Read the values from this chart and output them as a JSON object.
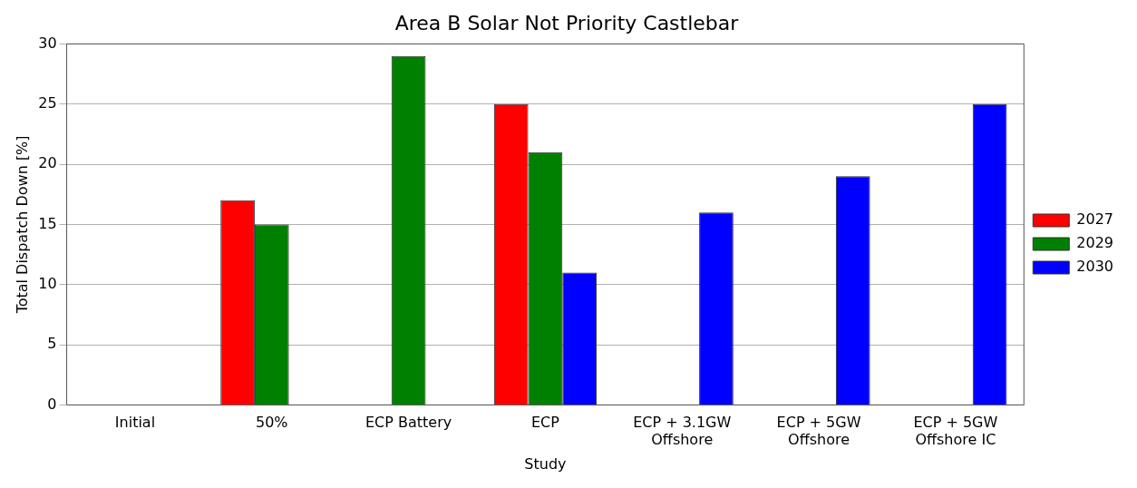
{
  "chart_data": {
    "type": "bar",
    "title": "Area B Solar Not Priority Castlebar",
    "xlabel": "Study",
    "ylabel": "Total Dispatch Down [%]",
    "categories": [
      "Initial",
      "50%",
      "ECP Battery",
      "ECP",
      "ECP + 3.1GW\nOffshore",
      "ECP + 5GW\nOffshore",
      "ECP + 5GW\nOffshore IC"
    ],
    "series": [
      {
        "name": "2027",
        "color": "#ff0000",
        "values": [
          0,
          17,
          0,
          25,
          0,
          0,
          0
        ]
      },
      {
        "name": "2029",
        "color": "#008000",
        "values": [
          0,
          15,
          29,
          21,
          0,
          0,
          0
        ]
      },
      {
        "name": "2030",
        "color": "#0000ff",
        "values": [
          0,
          0,
          0,
          11,
          16,
          19,
          25
        ]
      }
    ],
    "ylim": [
      0,
      30
    ],
    "yticks": [
      0,
      5,
      10,
      15,
      20,
      25,
      30
    ],
    "grid": "y",
    "legend": "right"
  }
}
